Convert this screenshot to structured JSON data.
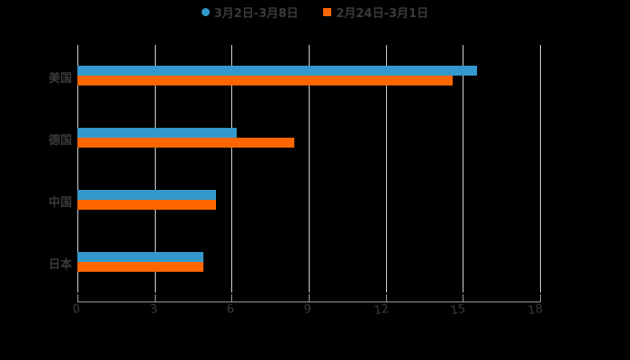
{
  "chart_data": {
    "type": "bar",
    "orientation": "horizontal",
    "title": "",
    "xlabel": "",
    "ylabel": "",
    "categories": [
      "美国",
      "德国",
      "中国",
      "日本"
    ],
    "series": [
      {
        "name": "3月2日-3月8日",
        "color": "#3399cc",
        "marker": "circle",
        "values": [
          15.55,
          6.2,
          5.4,
          4.9
        ]
      },
      {
        "name": "2月24日-3月1日",
        "color": "#ff6600",
        "marker": "square",
        "values": [
          14.6,
          8.45,
          5.4,
          4.9
        ]
      }
    ],
    "xlim": [
      0,
      18
    ],
    "xticks": [
      "0",
      "3",
      "6",
      "9",
      "12",
      "15",
      "18"
    ],
    "grid": true,
    "legend_position": "top"
  },
  "legend": {
    "items": [
      {
        "label": "3月2日-3月8日",
        "color": "#3399cc"
      },
      {
        "label": "2月24日-3月1日",
        "color": "#ff6600"
      }
    ]
  }
}
